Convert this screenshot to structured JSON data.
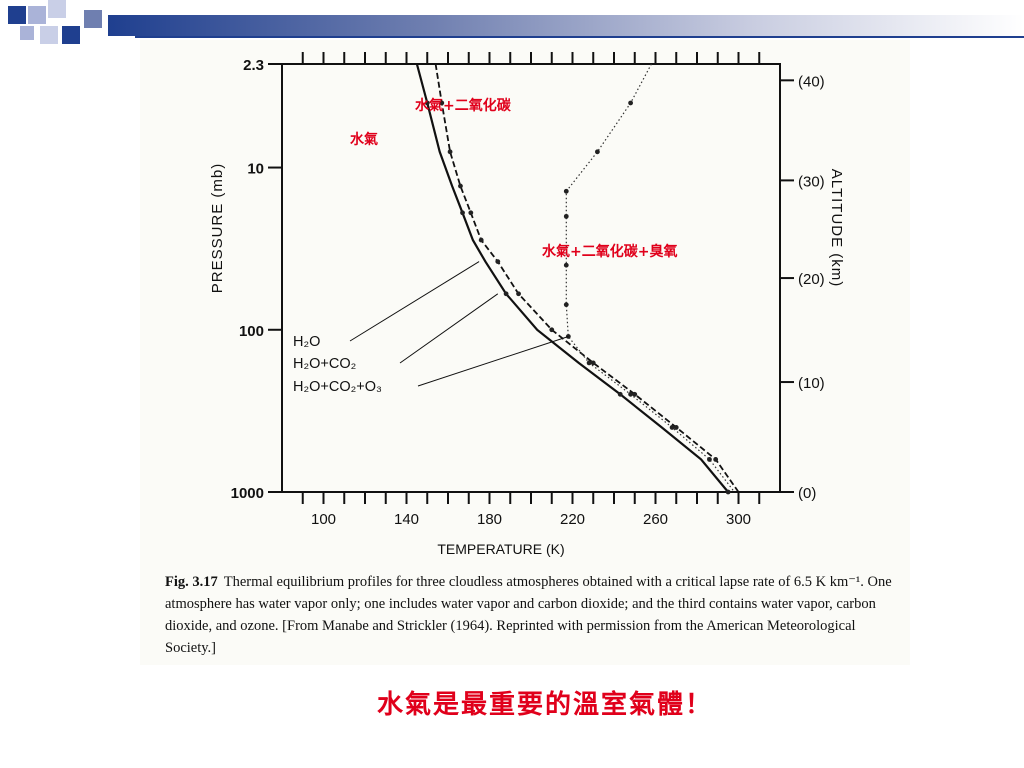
{
  "slide": {
    "headline": "水氣是最重要的溫室氣體！",
    "accent_color": "#e0001b",
    "bar_color": "#1f3f8f"
  },
  "caption": {
    "label": "Fig. 3.17",
    "text": "Thermal equilibrium profiles for three cloudless atmospheres obtained with a critical lapse rate of 6.5 K km⁻¹. One atmosphere has water vapor only; one includes water vapor and carbon dioxide; and the third contains water vapor, carbon dioxide, and ozone. [From Manabe and Strickler (1964). Reprinted with permission from the American Meteorological Society.]"
  },
  "chart_data": {
    "type": "line",
    "xlabel": "TEMPERATURE (K)",
    "ylabel": "PRESSURE (mb)",
    "y2label": "ALTITUDE (km)",
    "xlim": [
      80,
      320
    ],
    "ylim_log_pressure": [
      1000,
      2.3
    ],
    "y_scale": "log",
    "x_ticks": [
      "100",
      "140",
      "180",
      "220",
      "260",
      "300"
    ],
    "y_ticks": [
      "2.3",
      "10",
      "100",
      "1000"
    ],
    "y2_ticks": [
      "(40)",
      "(30)",
      "(20)",
      "(10)",
      "(0)"
    ],
    "annotations_zh": [
      {
        "text": "水氣+二氧化碳"
      },
      {
        "text": "水氣"
      },
      {
        "text": "水氣+二氧化碳+臭氧"
      }
    ],
    "legend_entries": [
      "H₂O",
      "H₂O+CO₂",
      "H₂O+CO₂+O₃"
    ],
    "series": [
      {
        "name": "H₂O",
        "style": "solid",
        "points": [
          [
            145,
            2.3
          ],
          [
            150,
            4
          ],
          [
            156,
            8
          ],
          [
            162,
            13
          ],
          [
            167,
            19
          ],
          [
            172,
            28
          ],
          [
            178,
            38
          ],
          [
            188,
            60
          ],
          [
            203,
            100
          ],
          [
            223,
            160
          ],
          [
            243,
            250
          ],
          [
            263,
            400
          ],
          [
            282,
            630
          ],
          [
            295,
            1000
          ]
        ]
      },
      {
        "name": "H₂O+CO₂",
        "style": "dashed",
        "points": [
          [
            154,
            2.3
          ],
          [
            157,
            4
          ],
          [
            161,
            8
          ],
          [
            166,
            13
          ],
          [
            171,
            19
          ],
          [
            176,
            28
          ],
          [
            184,
            38
          ],
          [
            194,
            60
          ],
          [
            210,
            100
          ],
          [
            230,
            160
          ],
          [
            250,
            250
          ],
          [
            270,
            400
          ],
          [
            289,
            630
          ],
          [
            300,
            1000
          ]
        ]
      },
      {
        "name": "H₂O+CO₂+O₃",
        "style": "dotted",
        "points": [
          [
            258,
            2.3
          ],
          [
            248,
            4
          ],
          [
            232,
            8
          ],
          [
            217,
            14
          ],
          [
            217,
            20
          ],
          [
            217,
            40
          ],
          [
            217,
            70
          ],
          [
            218,
            110
          ],
          [
            228,
            160
          ],
          [
            248,
            250
          ],
          [
            268,
            400
          ],
          [
            286,
            630
          ],
          [
            298,
            1000
          ]
        ]
      }
    ]
  }
}
